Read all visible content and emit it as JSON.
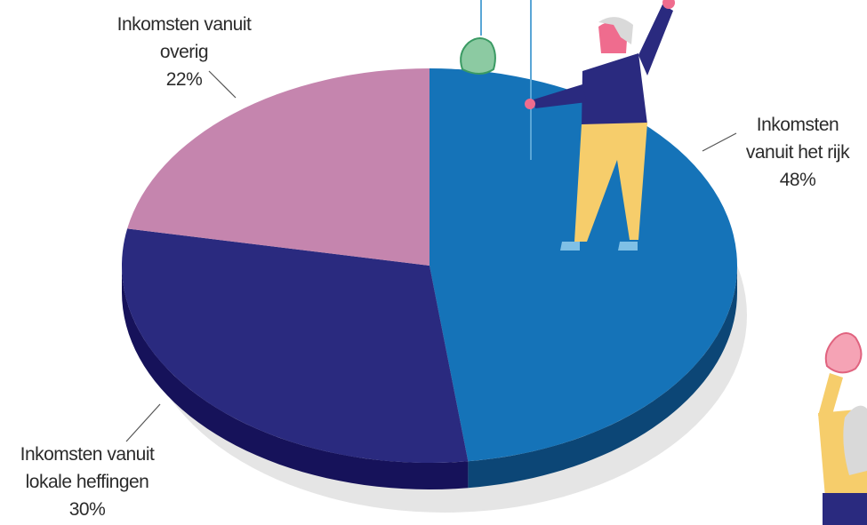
{
  "chart_data": {
    "type": "pie",
    "categories": [
      "Inkomsten vanuit het rijk",
      "Inkomsten vanuit lokale heffingen",
      "Inkomsten vanuit overig"
    ],
    "values": [
      48,
      30,
      22
    ],
    "value_labels": [
      "48%",
      "30%",
      "22%"
    ],
    "colors": [
      "#1573b8",
      "#2a2a7f",
      "#c585ae"
    ],
    "side_colors": [
      "#0c4676",
      "#16125a",
      "#8a5a7a"
    ]
  }
}
